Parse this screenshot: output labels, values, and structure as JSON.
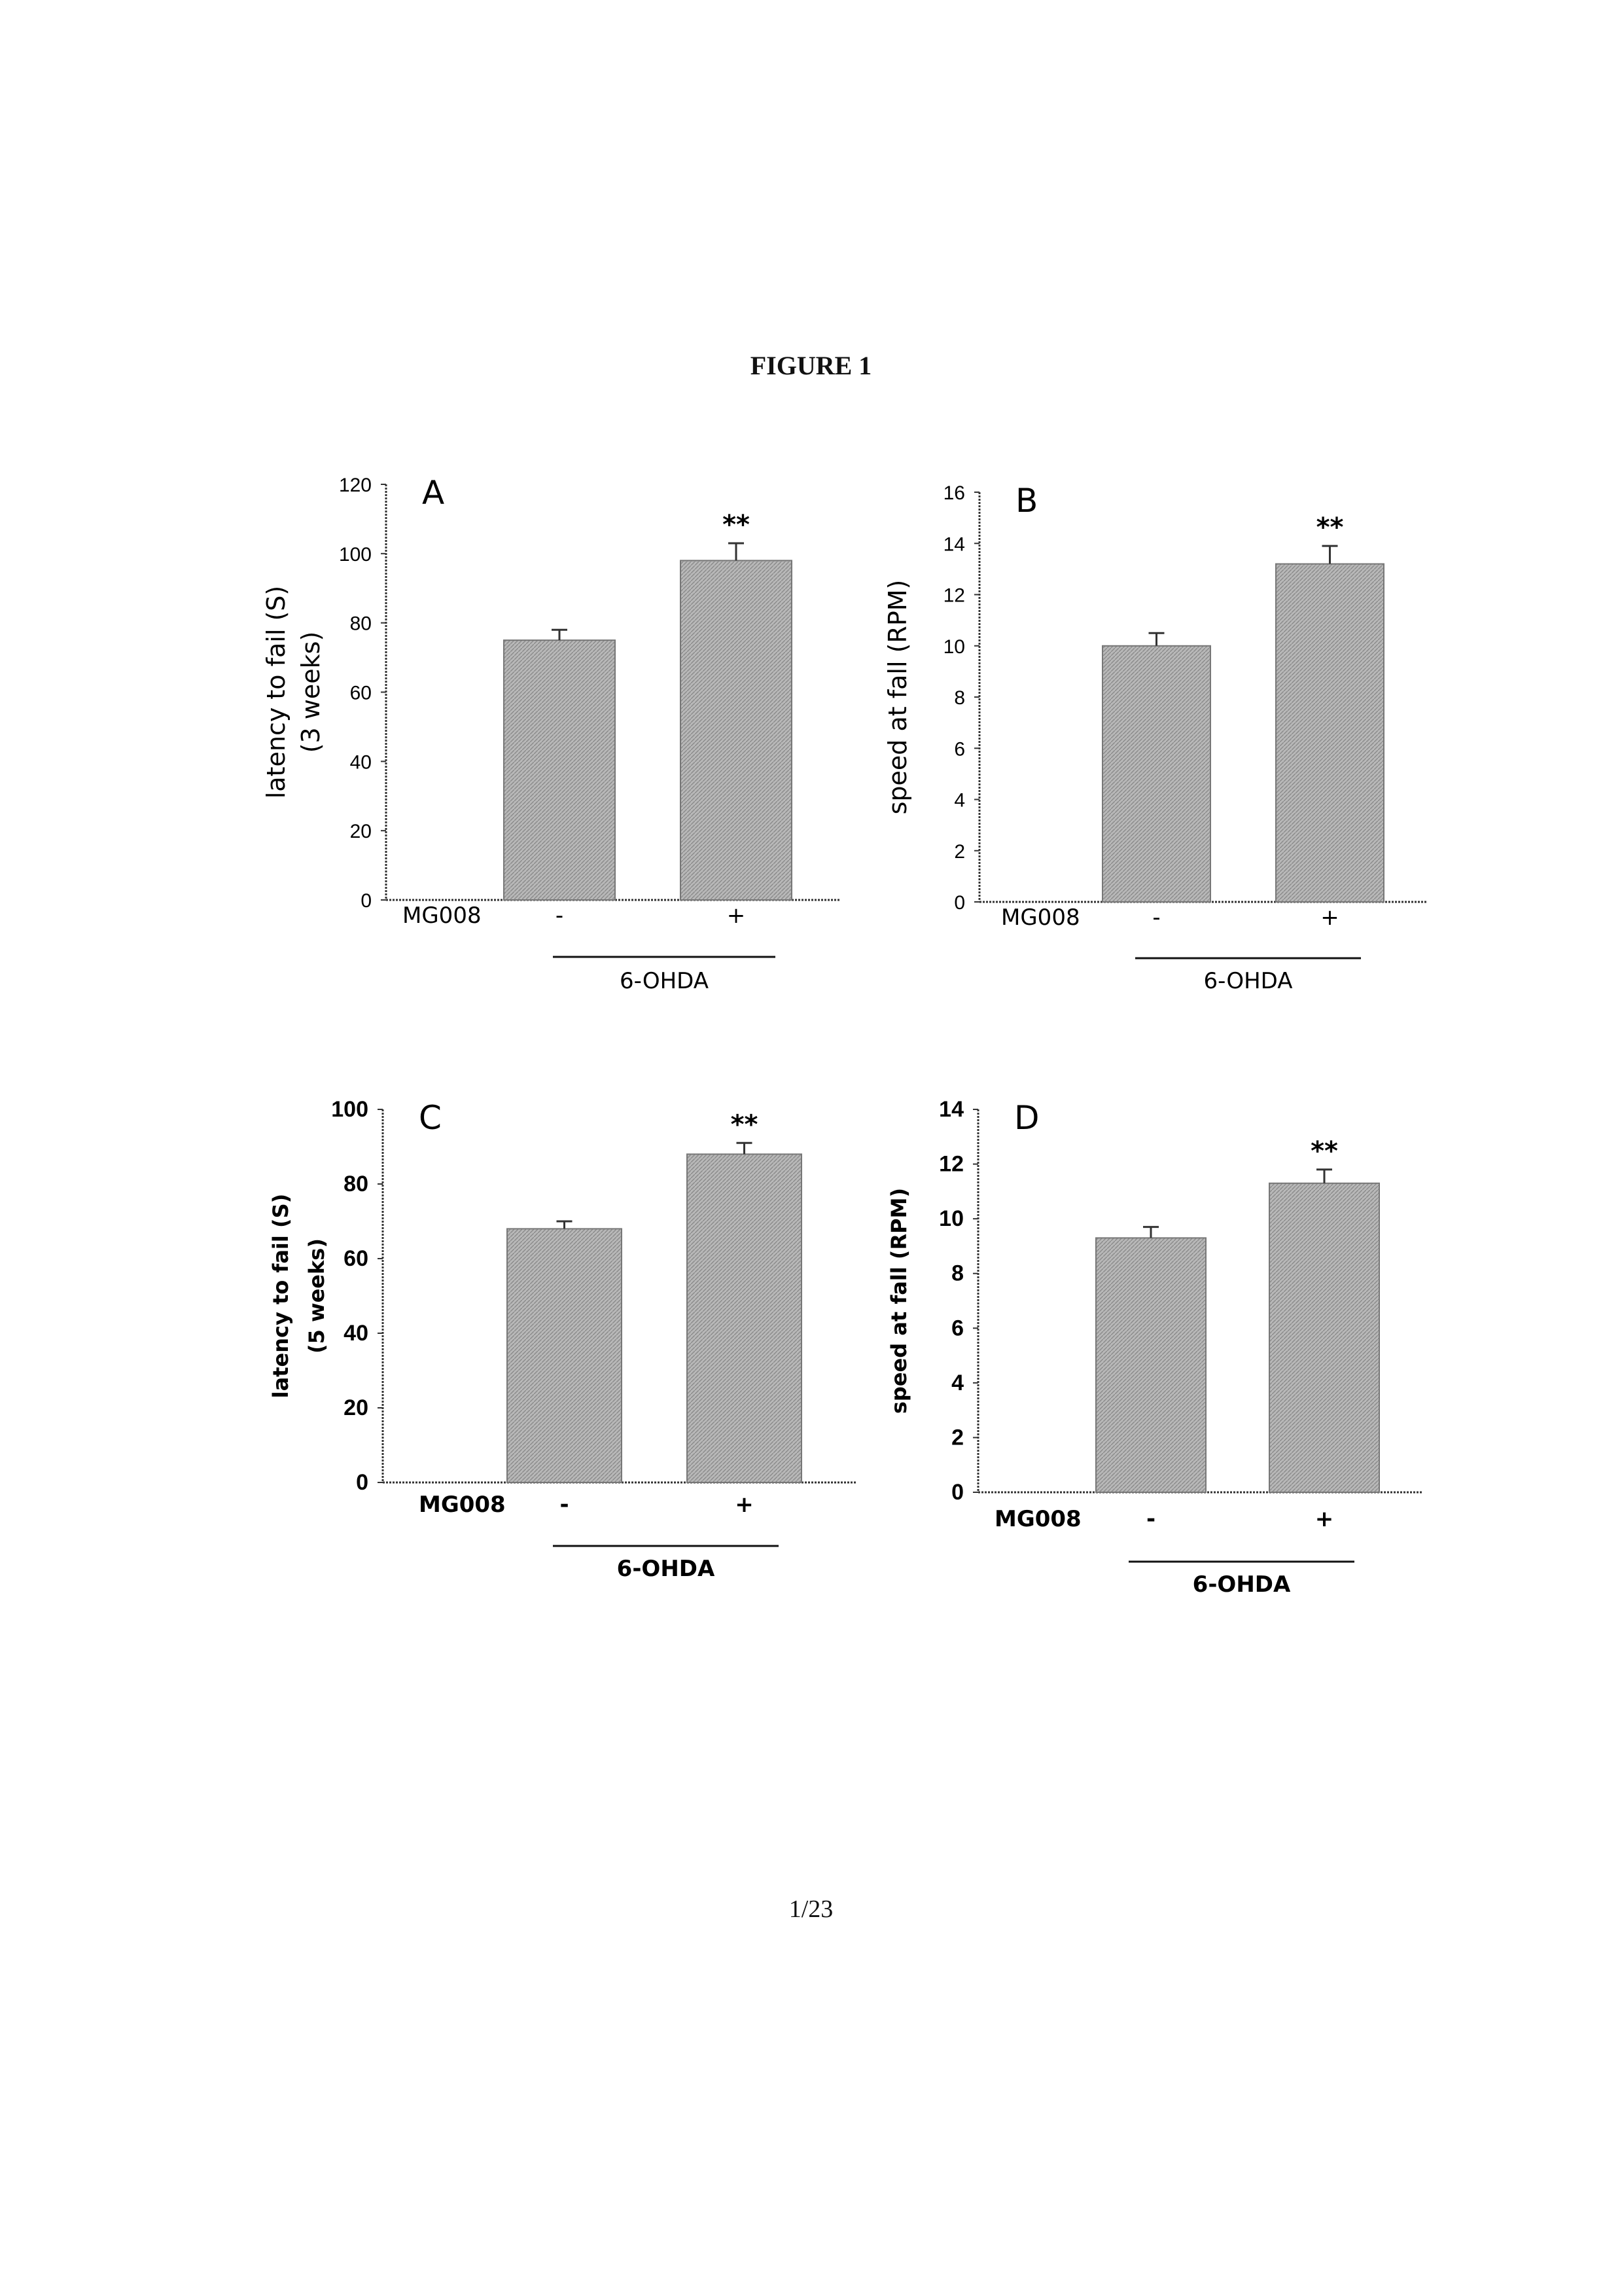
{
  "figure_title": "FIGURE 1",
  "page_number": "1/23",
  "chart_data": [
    {
      "type": "bar",
      "panel_label": "A",
      "ylabel": "latency to fail (S)",
      "ylabel_sub": "(3 weeks)",
      "ylim": [
        0,
        120
      ],
      "yticks": [
        "0",
        "20",
        "40",
        "60",
        "80",
        "100",
        "120"
      ],
      "row_label": "MG008",
      "categories": [
        "-",
        "+"
      ],
      "group_label": "6-OHDA",
      "values": [
        75,
        98
      ],
      "errors": [
        3,
        5
      ],
      "significance": [
        "",
        "**"
      ],
      "grid": false,
      "color": "#b8b8b8"
    },
    {
      "type": "bar",
      "panel_label": "B",
      "ylabel": "speed at fall (RPM)",
      "ylabel_sub": "",
      "ylim": [
        0,
        16
      ],
      "yticks": [
        "0",
        "2",
        "4",
        "6",
        "8",
        "10",
        "12",
        "14",
        "16"
      ],
      "row_label": "MG008",
      "categories": [
        "-",
        "+"
      ],
      "group_label": "6-OHDA",
      "values": [
        10,
        13.2
      ],
      "errors": [
        0.5,
        0.7
      ],
      "significance": [
        "",
        "**"
      ],
      "grid": false,
      "color": "#b8b8b8"
    },
    {
      "type": "bar",
      "panel_label": "C",
      "ylabel": "latency to fail (S)",
      "ylabel_sub": "(5 weeks)",
      "ylim": [
        0,
        100
      ],
      "yticks": [
        "0",
        "20",
        "40",
        "60",
        "80",
        "100"
      ],
      "row_label": "MG008",
      "categories": [
        "-",
        "+"
      ],
      "group_label": "6-OHDA",
      "values": [
        68,
        88
      ],
      "errors": [
        2,
        3
      ],
      "significance": [
        "",
        "**"
      ],
      "grid": false,
      "color": "#b8b8b8"
    },
    {
      "type": "bar",
      "panel_label": "D",
      "ylabel": "speed at fall (RPM)",
      "ylabel_sub": "",
      "ylim": [
        0,
        14
      ],
      "yticks": [
        "0",
        "2",
        "4",
        "6",
        "8",
        "10",
        "12",
        "14"
      ],
      "row_label": "MG008",
      "categories": [
        "-",
        "+"
      ],
      "group_label": "6-OHDA",
      "values": [
        9.3,
        11.3
      ],
      "errors": [
        0.4,
        0.5
      ],
      "significance": [
        "",
        "**"
      ],
      "grid": false,
      "color": "#b8b8b8"
    }
  ]
}
